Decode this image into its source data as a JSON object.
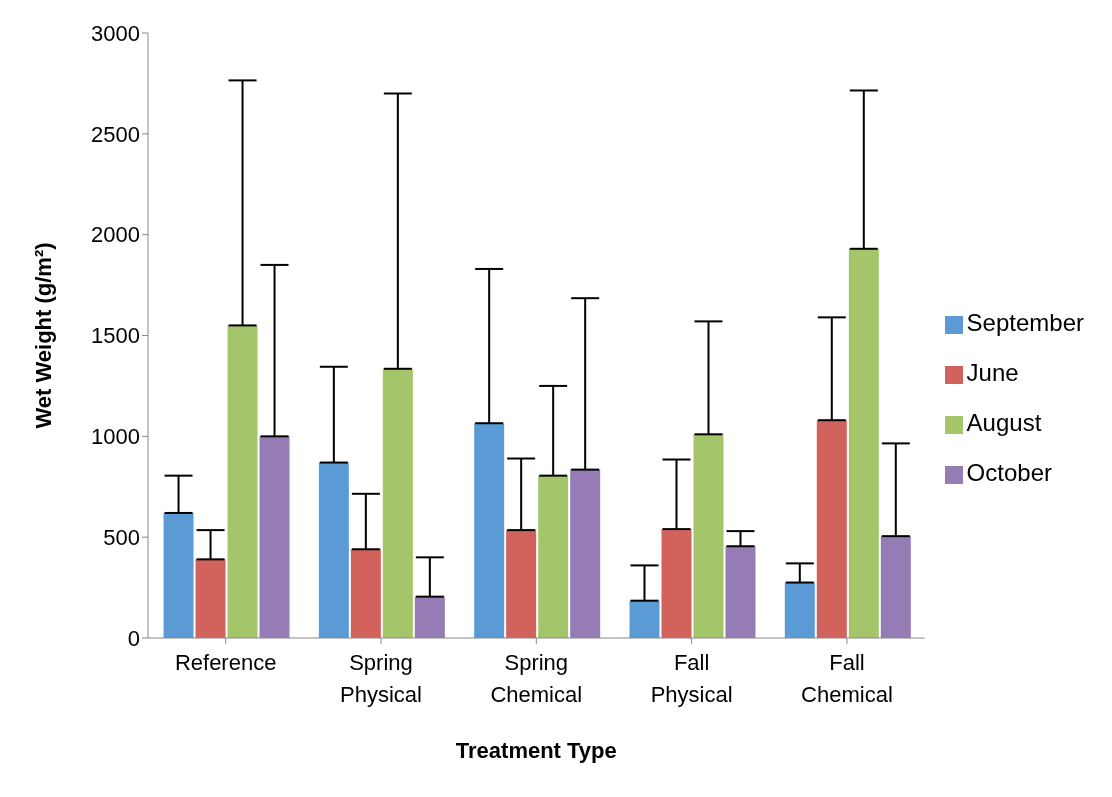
{
  "chart_data": {
    "type": "bar",
    "xlabel": "Treatment Type",
    "ylabel": "Wet Weight (g/m²)",
    "categories": [
      "Reference",
      "Spring Physical",
      "Spring Chemical",
      "Fall Physical",
      "Fall Chemical"
    ],
    "series": [
      {
        "name": "September",
        "color": "#5b9bd5",
        "values": [
          620,
          870,
          1065,
          185,
          275
        ],
        "errors": [
          [
            620,
            805
          ],
          [
            870,
            1345
          ],
          [
            1065,
            1830
          ],
          [
            185,
            360
          ],
          [
            275,
            370
          ]
        ]
      },
      {
        "name": "June",
        "color": "#d2625c",
        "values": [
          390,
          440,
          535,
          540,
          1080
        ],
        "errors": [
          [
            390,
            535
          ],
          [
            440,
            715
          ],
          [
            535,
            890
          ],
          [
            540,
            885
          ],
          [
            1080,
            1590
          ]
        ]
      },
      {
        "name": "August",
        "color": "#a5c56a",
        "values": [
          1550,
          1335,
          805,
          1010,
          1930
        ],
        "errors": [
          [
            1550,
            2765
          ],
          [
            1335,
            2700
          ],
          [
            805,
            1250
          ],
          [
            1010,
            1570
          ],
          [
            1930,
            2715
          ]
        ]
      },
      {
        "name": "October",
        "color": "#957cb5",
        "values": [
          1000,
          205,
          835,
          455,
          505
        ],
        "errors": [
          [
            1000,
            1850
          ],
          [
            205,
            400
          ],
          [
            835,
            1685
          ],
          [
            455,
            530
          ],
          [
            505,
            965
          ]
        ]
      }
    ],
    "ylim": [
      0,
      3000
    ],
    "yticks": [
      0,
      500,
      1000,
      1500,
      2000,
      2500,
      3000
    ],
    "grid": false,
    "legend": "right"
  }
}
